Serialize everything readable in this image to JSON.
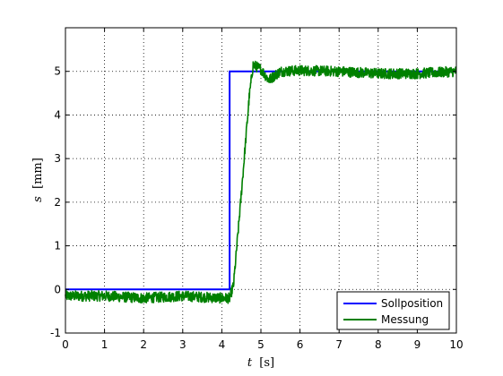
{
  "chart_data": {
    "type": "line",
    "title": "",
    "xlabel": {
      "symbol": "t",
      "unit": "[s]"
    },
    "ylabel": {
      "symbol": "s",
      "unit": "[mm]"
    },
    "xlim": [
      0,
      10
    ],
    "ylim": [
      -1,
      6
    ],
    "xticks": [
      "0",
      "1",
      "2",
      "3",
      "4",
      "5",
      "6",
      "7",
      "8",
      "9",
      "10"
    ],
    "yticks": [
      "-1",
      "0",
      "1",
      "2",
      "3",
      "4",
      "5"
    ],
    "grid": true,
    "legend_position": "bottom-right",
    "series": [
      {
        "name": "Sollposition",
        "color": "#0000ff",
        "x": [
          0,
          4.2,
          4.2,
          10
        ],
        "y": [
          0,
          0,
          5,
          5
        ]
      },
      {
        "name": "Messung",
        "color": "#008000",
        "noise_amplitude": 0.12,
        "x": [
          0,
          1,
          2,
          3,
          4.0,
          4.2,
          4.3,
          4.5,
          4.7,
          4.8,
          5.0,
          5.2,
          5.5,
          6,
          7,
          8,
          9,
          10
        ],
        "y": [
          -0.15,
          -0.15,
          -0.2,
          -0.15,
          -0.2,
          -0.2,
          0.1,
          2.2,
          4.4,
          5.15,
          5.05,
          4.8,
          5.0,
          5.02,
          5.0,
          4.95,
          4.95,
          5.0
        ]
      }
    ]
  }
}
